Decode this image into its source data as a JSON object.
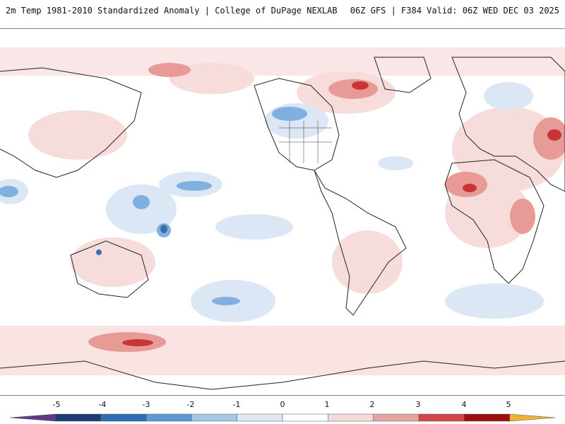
{
  "header": {
    "title": "2m Temp 1981-2010 Standardized Anomaly | College of DuPage NEXLAB",
    "run_info": "06Z GFS | F384 Valid: 06Z WED DEC 03 2025"
  },
  "map": {
    "field": "2m temperature standardized anomaly",
    "projection": "global",
    "warm_color": "#e8877f",
    "cool_color": "#7fb0df"
  },
  "colorbar": {
    "ticks": [
      "-5",
      "-4",
      "-3",
      "-2",
      "-1",
      "0",
      "1",
      "2",
      "3",
      "4",
      "5"
    ],
    "colors": [
      "#5b3a8c",
      "#1f3a78",
      "#2c6eb4",
      "#5b9bd5",
      "#a6c8e8",
      "#dde9f5",
      "#ffffff",
      "#f5dada",
      "#e8a3a3",
      "#d14747",
      "#9e0f0f",
      "#f2b134"
    ]
  }
}
